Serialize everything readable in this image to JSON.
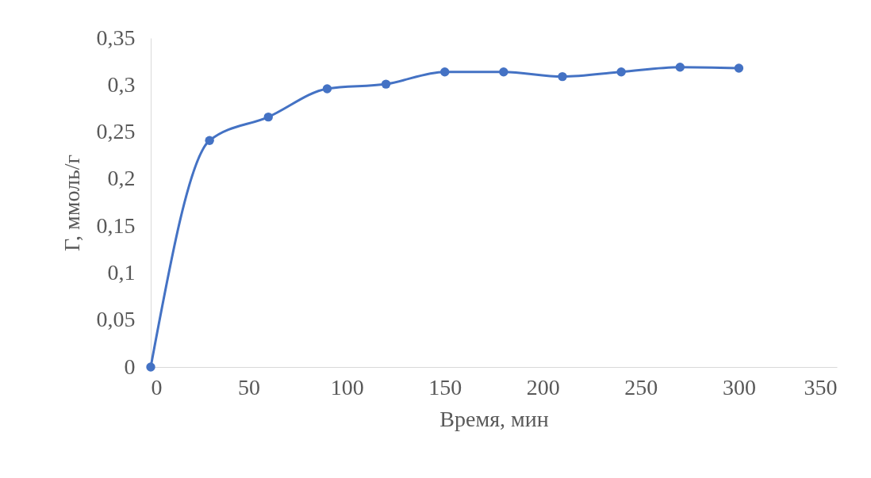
{
  "chart_data": {
    "type": "line",
    "xlabel": "Время, мин",
    "ylabel": "Г, ммоль/г",
    "x": [
      0,
      30,
      60,
      90,
      120,
      150,
      180,
      210,
      240,
      270,
      300
    ],
    "series": [
      {
        "color": "#4472c4",
        "values": [
          0,
          0.241,
          0.266,
          0.296,
          0.301,
          0.314,
          0.314,
          0.309,
          0.314,
          0.319,
          0.318
        ]
      }
    ],
    "xlim": [
      0,
      350
    ],
    "xticks": [
      0,
      50,
      100,
      150,
      200,
      250,
      300,
      350
    ],
    "ylim": [
      0,
      0.35
    ],
    "yticks": [
      0,
      {
        "value": 0.05,
        "label": "0,05"
      },
      {
        "value": 0.1,
        "label": "0,1"
      },
      {
        "value": 0.15,
        "label": "0,15"
      },
      {
        "value": 0.2,
        "label": "0,2"
      },
      {
        "value": 0.25,
        "label": "0,25"
      },
      {
        "value": 0.3,
        "label": "0,3"
      },
      {
        "value": 0.35,
        "label": "0,35"
      }
    ],
    "grid": false,
    "marker": "circle",
    "line_style": "solid"
  }
}
